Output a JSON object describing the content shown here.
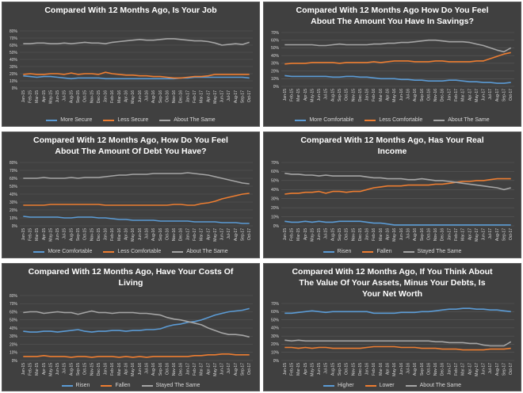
{
  "months": [
    "Jan-15",
    "Feb-15",
    "Mar-15",
    "Apr-15",
    "May-15",
    "Jun-15",
    "Jul-15",
    "Aug-15",
    "Sep-15",
    "Oct-15",
    "Nov-15",
    "Dec-15",
    "Jan-16",
    "Feb-16",
    "Mar-16",
    "Apr-16",
    "May-16",
    "Jun-16",
    "Jul-16",
    "Aug-16",
    "Sep-16",
    "Oct-16",
    "Nov-16",
    "Dec-16",
    "Jan-17",
    "Feb-17",
    "Mar-17",
    "Apr-17",
    "May-17",
    "Jun-17",
    "Jul-17",
    "Aug-17",
    "Sep-17",
    "Oct-17"
  ],
  "colors": {
    "panel": "#404040",
    "grid": "#595959",
    "blue": "#5b9bd5",
    "orange": "#ed7d31",
    "gray": "#a5a5a5",
    "text": "#d9d9d9"
  },
  "chart_data": [
    {
      "type": "line",
      "title": "Compared With 12 Months Ago, Is Your Job",
      "ylim": [
        0,
        80
      ],
      "yticks": [
        0,
        10,
        20,
        30,
        40,
        50,
        60,
        70,
        80
      ],
      "series": [
        {
          "name": "More Secure",
          "color": "#5b9bd5",
          "values": [
            17,
            16,
            15,
            16,
            16,
            15,
            14,
            13,
            14,
            14,
            14,
            14,
            13,
            13,
            13,
            13,
            13,
            13,
            13,
            13,
            13,
            13,
            13,
            14,
            14,
            15,
            15,
            15,
            15,
            15,
            15,
            15,
            15,
            14
          ]
        },
        {
          "name": "Less Secure",
          "color": "#ed7d31",
          "values": [
            19,
            20,
            19,
            19,
            20,
            20,
            19,
            21,
            19,
            20,
            20,
            19,
            22,
            20,
            19,
            18,
            18,
            17,
            17,
            16,
            16,
            15,
            14,
            14,
            15,
            16,
            16,
            17,
            19,
            19,
            19,
            19,
            19,
            19
          ]
        },
        {
          "name": "About The Same",
          "color": "#a5a5a5",
          "values": [
            62,
            62,
            63,
            63,
            62,
            62,
            63,
            62,
            63,
            64,
            63,
            63,
            62,
            64,
            65,
            66,
            67,
            68,
            67,
            67,
            68,
            69,
            69,
            68,
            67,
            66,
            66,
            65,
            63,
            60,
            61,
            62,
            61,
            64
          ]
        }
      ]
    },
    {
      "type": "line",
      "title": "Compared With 12 Months Ago How Do You Feel\nAbout The Amount You Have In Savings?",
      "ylim": [
        0,
        70
      ],
      "yticks": [
        0,
        10,
        20,
        30,
        40,
        50,
        60,
        70
      ],
      "series": [
        {
          "name": "More Comfortable",
          "color": "#5b9bd5",
          "values": [
            14,
            13,
            13,
            13,
            13,
            13,
            13,
            12,
            12,
            13,
            13,
            12,
            12,
            11,
            10,
            10,
            10,
            9,
            9,
            8,
            8,
            7,
            7,
            7,
            8,
            8,
            7,
            6,
            6,
            5,
            5,
            4,
            4,
            5
          ]
        },
        {
          "name": "Less Comfortable",
          "color": "#ed7d31",
          "values": [
            29,
            30,
            30,
            30,
            31,
            31,
            31,
            31,
            30,
            31,
            31,
            31,
            31,
            32,
            31,
            32,
            33,
            33,
            33,
            32,
            32,
            32,
            33,
            33,
            32,
            32,
            32,
            32,
            33,
            33,
            36,
            39,
            42,
            44
          ]
        },
        {
          "name": "About The Same",
          "color": "#a5a5a5",
          "values": [
            54,
            54,
            54,
            54,
            54,
            53,
            53,
            54,
            55,
            54,
            54,
            54,
            54,
            55,
            55,
            56,
            56,
            57,
            57,
            58,
            59,
            60,
            60,
            59,
            58,
            58,
            58,
            57,
            55,
            53,
            50,
            47,
            45,
            50
          ]
        }
      ]
    },
    {
      "type": "line",
      "title": "Compared With 12 Months Ago, How Do You Feel\nAbout The Amount Of Debt You Have?",
      "ylim": [
        0,
        80
      ],
      "yticks": [
        0,
        10,
        20,
        30,
        40,
        50,
        60,
        70,
        80
      ],
      "series": [
        {
          "name": "More Comfortable",
          "color": "#5b9bd5",
          "values": [
            12,
            11,
            11,
            11,
            11,
            11,
            10,
            10,
            11,
            11,
            11,
            10,
            10,
            9,
            8,
            8,
            7,
            7,
            7,
            7,
            6,
            6,
            6,
            6,
            6,
            5,
            5,
            5,
            5,
            4,
            4,
            4,
            3,
            3
          ]
        },
        {
          "name": "Less Comfortable",
          "color": "#ed7d31",
          "values": [
            26,
            26,
            26,
            26,
            27,
            27,
            27,
            27,
            27,
            27,
            27,
            27,
            26,
            26,
            26,
            26,
            26,
            26,
            26,
            26,
            26,
            26,
            27,
            27,
            26,
            26,
            28,
            29,
            31,
            34,
            36,
            38,
            40,
            41
          ]
        },
        {
          "name": "About The Same",
          "color": "#a5a5a5",
          "values": [
            60,
            60,
            60,
            61,
            60,
            60,
            60,
            61,
            60,
            61,
            61,
            61,
            62,
            63,
            64,
            64,
            65,
            65,
            65,
            66,
            66,
            66,
            66,
            66,
            67,
            66,
            65,
            64,
            62,
            60,
            58,
            56,
            54,
            53
          ]
        }
      ]
    },
    {
      "type": "line",
      "title": "Compared With 12 Months Ago, Has Your Real\nIncome",
      "ylim": [
        0,
        70
      ],
      "yticks": [
        0,
        10,
        20,
        30,
        40,
        50,
        60,
        70
      ],
      "series": [
        {
          "name": "Risen",
          "color": "#5b9bd5",
          "values": [
            5,
            4,
            4,
            5,
            4,
            5,
            4,
            4,
            5,
            5,
            5,
            5,
            4,
            3,
            3,
            2,
            1,
            1,
            1,
            1,
            1,
            1,
            1,
            1,
            1,
            1,
            1,
            1,
            1,
            1,
            1,
            1,
            1,
            1
          ]
        },
        {
          "name": "Fallen",
          "color": "#ed7d31",
          "values": [
            35,
            36,
            36,
            37,
            37,
            38,
            36,
            38,
            38,
            37,
            38,
            38,
            40,
            42,
            43,
            44,
            44,
            44,
            45,
            45,
            45,
            45,
            46,
            46,
            47,
            48,
            49,
            49,
            50,
            50,
            51,
            52,
            52,
            52
          ]
        },
        {
          "name": "Stayed The Same",
          "color": "#a5a5a5",
          "values": [
            58,
            57,
            57,
            56,
            56,
            55,
            56,
            55,
            55,
            55,
            55,
            55,
            54,
            53,
            53,
            52,
            52,
            52,
            51,
            51,
            52,
            51,
            50,
            50,
            49,
            48,
            47,
            46,
            45,
            44,
            43,
            42,
            40,
            42
          ]
        }
      ]
    },
    {
      "type": "line",
      "title": "Compared With 12 Months Ago, Have Your Costs Of\nLiving",
      "ylim": [
        0,
        80
      ],
      "yticks": [
        0,
        10,
        20,
        30,
        40,
        50,
        60,
        70,
        80
      ],
      "series": [
        {
          "name": "Risen",
          "color": "#5b9bd5",
          "values": [
            36,
            35,
            35,
            36,
            36,
            35,
            36,
            37,
            38,
            36,
            35,
            36,
            36,
            37,
            37,
            36,
            37,
            37,
            38,
            38,
            39,
            42,
            44,
            45,
            47,
            48,
            50,
            53,
            56,
            58,
            60,
            61,
            62,
            64
          ]
        },
        {
          "name": "Fallen",
          "color": "#ed7d31",
          "values": [
            5,
            5,
            5,
            6,
            5,
            5,
            5,
            4,
            5,
            5,
            4,
            5,
            5,
            5,
            4,
            5,
            4,
            5,
            4,
            5,
            5,
            5,
            5,
            5,
            5,
            6,
            6,
            7,
            7,
            8,
            8,
            7,
            7,
            7
          ]
        },
        {
          "name": "Stayed The Same",
          "color": "#a5a5a5",
          "values": [
            59,
            60,
            60,
            58,
            59,
            60,
            59,
            59,
            57,
            59,
            61,
            59,
            59,
            58,
            59,
            59,
            59,
            58,
            58,
            57,
            56,
            53,
            51,
            50,
            48,
            46,
            44,
            40,
            37,
            34,
            32,
            32,
            31,
            29
          ]
        }
      ]
    },
    {
      "type": "line",
      "title": "Compared With 12 Months Ago, If You Think About\nThe Value Of Your Assets, Minus Your Debts, Is\nYour Net Worth",
      "ylim": [
        0,
        70
      ],
      "yticks": [
        0,
        10,
        20,
        30,
        40,
        50,
        60,
        70
      ],
      "series": [
        {
          "name": "Higher",
          "color": "#5b9bd5",
          "values": [
            58,
            58,
            59,
            60,
            61,
            60,
            59,
            60,
            60,
            60,
            60,
            60,
            60,
            58,
            58,
            58,
            58,
            59,
            59,
            59,
            60,
            60,
            61,
            62,
            63,
            63,
            64,
            64,
            63,
            63,
            62,
            62,
            61,
            60
          ]
        },
        {
          "name": "Lower",
          "color": "#ed7d31",
          "values": [
            16,
            16,
            15,
            16,
            15,
            16,
            16,
            15,
            15,
            15,
            15,
            15,
            16,
            17,
            17,
            17,
            17,
            16,
            16,
            16,
            15,
            15,
            15,
            14,
            14,
            14,
            13,
            13,
            13,
            13,
            14,
            14,
            14,
            15
          ]
        },
        {
          "name": "About The Same",
          "color": "#a5a5a5",
          "values": [
            25,
            24,
            25,
            24,
            24,
            24,
            24,
            24,
            24,
            24,
            24,
            24,
            24,
            24,
            24,
            24,
            24,
            24,
            24,
            24,
            24,
            24,
            23,
            23,
            22,
            22,
            22,
            21,
            21,
            19,
            18,
            18,
            18,
            23
          ]
        }
      ]
    }
  ]
}
